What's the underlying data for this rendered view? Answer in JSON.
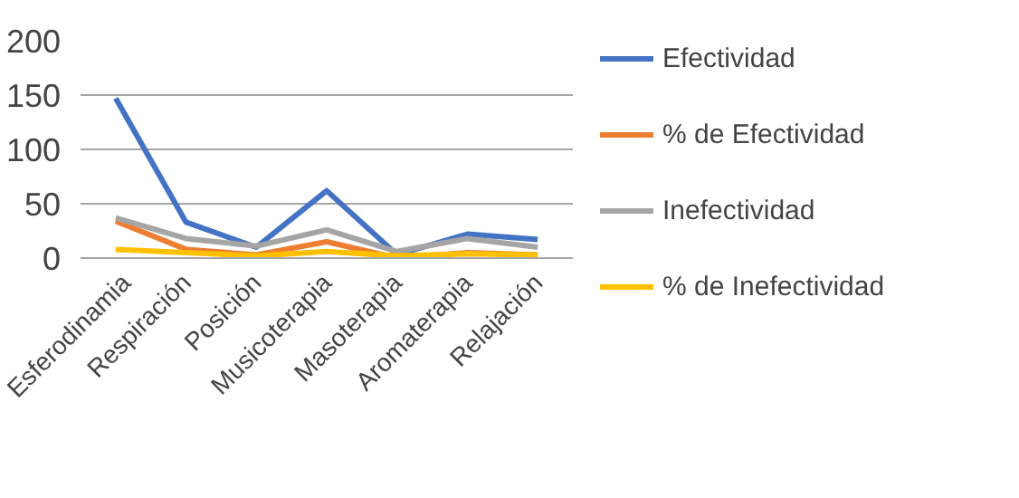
{
  "chart_data": {
    "type": "line",
    "categories": [
      "Esferodinamia",
      "Respiración",
      "Posición",
      "Musicoterapia",
      "Masoterapia",
      "Aromaterapia",
      "Relajación"
    ],
    "series": [
      {
        "name": "Efectividad",
        "color": "#4472c4",
        "values": [
          147,
          33,
          10,
          62,
          3,
          22,
          17
        ]
      },
      {
        "name": "% de Efectividad",
        "color": "#ed7d31",
        "values": [
          34,
          8,
          3,
          15,
          0,
          5,
          3
        ]
      },
      {
        "name": "Inefectividad",
        "color": "#a5a5a5",
        "values": [
          37,
          18,
          11,
          26,
          6,
          18,
          10
        ]
      },
      {
        "name": "% de Inefectividad",
        "color": "#ffc000",
        "values": [
          8,
          5,
          2,
          6,
          2,
          4,
          3
        ]
      }
    ],
    "ylim": [
      0,
      200
    ],
    "yticks": [
      0,
      50,
      100,
      150,
      200
    ],
    "grid": "y",
    "legend": "right",
    "marker": "none",
    "line_style": "solid"
  }
}
